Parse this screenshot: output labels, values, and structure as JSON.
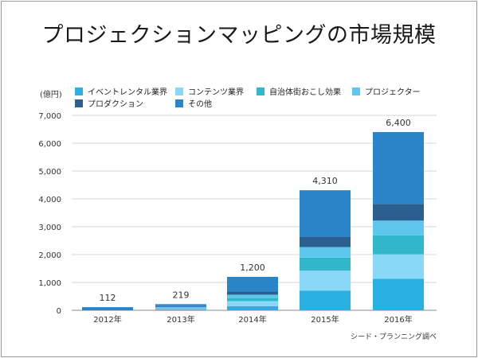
{
  "chart_data": {
    "type": "bar",
    "stacked": true,
    "title": "プロジェクションマッピングの市場規模",
    "ylabel": "(億円)",
    "credit": "シード・プランニング調べ",
    "categories": [
      "2012年",
      "2013年",
      "2014年",
      "2015年",
      "2016年"
    ],
    "yticks": [
      "0",
      "1,000",
      "2,000",
      "3,000",
      "4,000",
      "5,000",
      "6,000",
      "7,000"
    ],
    "ylim": [
      0,
      7000
    ],
    "grid": true,
    "legend_position": "top",
    "totals": [
      112,
      219,
      1200,
      4310,
      6400
    ],
    "total_labels": [
      "112",
      "219",
      "1,200",
      "4,310",
      "6,400"
    ],
    "series": [
      {
        "name": "イベントレンタル業界",
        "color": "#29b0e0",
        "values": [
          0,
          30,
          150,
          700,
          1130
        ]
      },
      {
        "name": "コンテンツ業界",
        "color": "#89d8f7",
        "values": [
          0,
          35,
          180,
          720,
          880
        ]
      },
      {
        "name": "自治体街おこし効果",
        "color": "#30b7c9",
        "values": [
          0,
          25,
          110,
          470,
          680
        ]
      },
      {
        "name": "プロジェクター",
        "color": "#5cc6ec",
        "values": [
          0,
          30,
          120,
          380,
          530
        ]
      },
      {
        "name": "プロダクション",
        "color": "#2a5f8f",
        "values": [
          0,
          30,
          110,
          380,
          600
        ]
      },
      {
        "name": "その他",
        "color": "#2985c7",
        "values": [
          112,
          69,
          530,
          1660,
          2580
        ]
      }
    ]
  }
}
